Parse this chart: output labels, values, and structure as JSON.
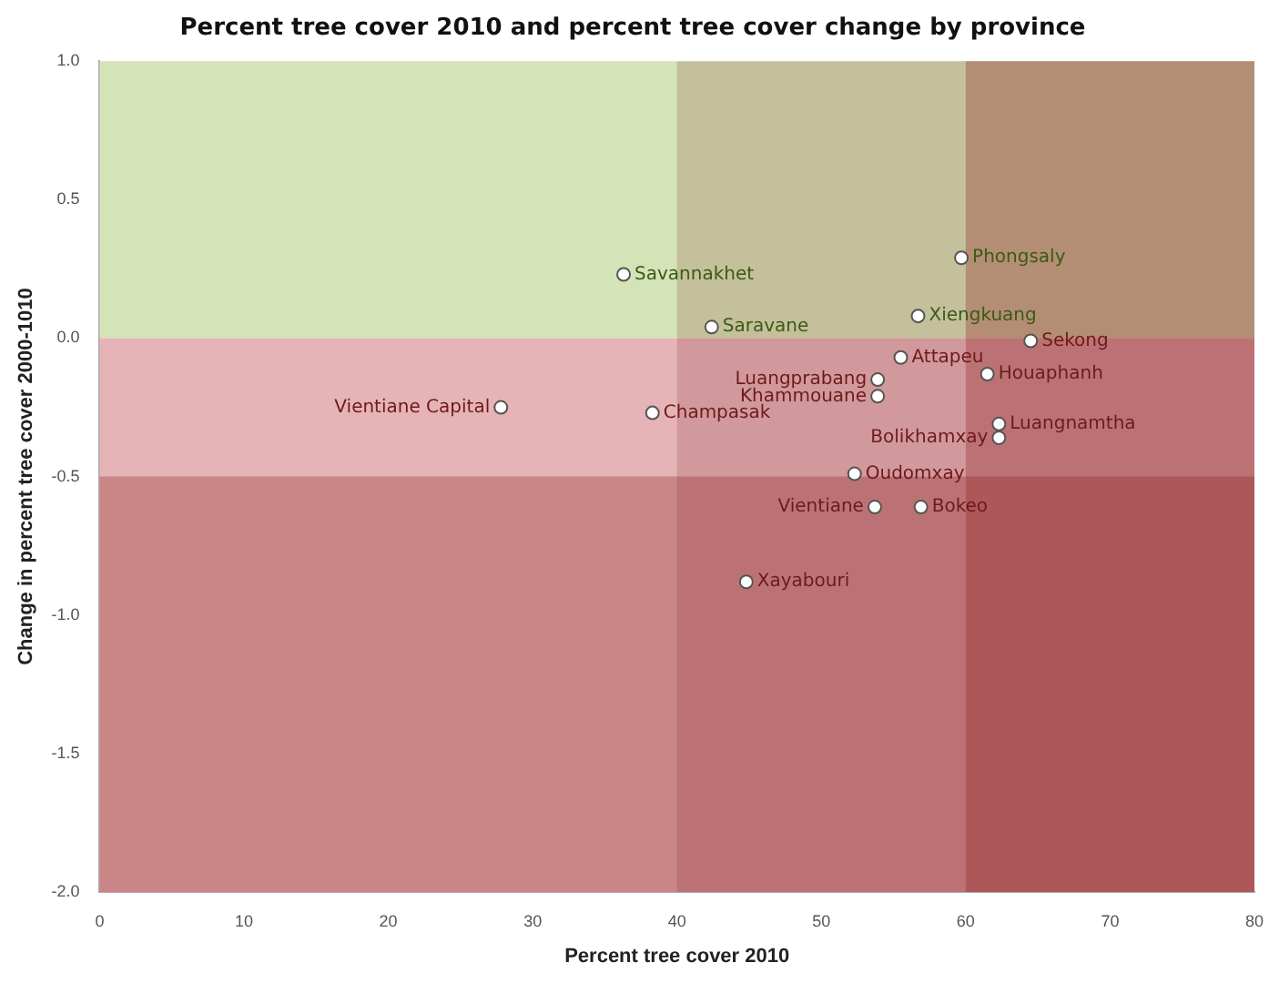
{
  "chart_data": {
    "type": "scatter",
    "title": "Percent tree cover 2010 and percent tree cover change by province",
    "xlabel": "Percent tree cover 2010",
    "ylabel": "Change in percent tree cover 2000-1010",
    "xlim": [
      0,
      80
    ],
    "xticks": [
      0,
      10,
      20,
      30,
      40,
      50,
      60,
      70,
      80
    ],
    "ylim": [
      -2.0,
      1.0
    ],
    "yticks": [
      {
        "value": -2,
        "label": "-2.0"
      },
      {
        "value": -1.5,
        "label": "-1.5"
      },
      {
        "value": -1,
        "label": "-1.0"
      },
      {
        "value": -0.5,
        "label": "-0.5"
      },
      {
        "value": 0,
        "label": "0.0"
      },
      {
        "value": 0.5,
        "label": "0.5"
      },
      {
        "value": 1,
        "label": "1.0"
      }
    ],
    "grid": false,
    "legend": false,
    "marker": "circle",
    "series": [
      {
        "color": "#ffffff",
        "x": [
          36.3,
          27.8,
          38.3,
          42.4,
          59.7,
          56.7,
          64.5,
          55.5,
          53.9,
          53.9,
          61.5,
          62.3,
          62.3,
          52.3,
          53.7,
          56.9,
          44.8
        ],
        "values": [
          0.23,
          -0.25,
          -0.27,
          0.04,
          0.29,
          0.08,
          -0.01,
          -0.07,
          -0.15,
          -0.21,
          -0.13,
          -0.31,
          -0.36,
          -0.49,
          -0.61,
          -0.61,
          -0.88
        ]
      }
    ],
    "bands": [
      {
        "axis": "y",
        "from": 0,
        "to": 1.0,
        "color": "#d5e3b8"
      },
      {
        "axis": "y",
        "from": -2.0,
        "to": 0,
        "color": "#e6b4b7"
      },
      {
        "axis": "x",
        "from": 40,
        "to": 80,
        "color": "#7a2020"
      },
      {
        "axis": "x",
        "from": 60,
        "to": 80,
        "color": "#8b1c1c"
      },
      {
        "axis": "y",
        "from": -2.0,
        "to": -0.5,
        "color": "#8b1c1c"
      }
    ],
    "annotations": [
      {
        "text": "Savannakhet",
        "x": 36.3,
        "y": 0.23
      },
      {
        "text": "Vientiane Capital",
        "x": 27.8,
        "y": -0.25
      },
      {
        "text": "Champasak",
        "x": 38.3,
        "y": -0.27
      },
      {
        "text": "Saravane",
        "x": 42.4,
        "y": 0.04
      },
      {
        "text": "Phongsaly",
        "x": 59.7,
        "y": 0.29
      },
      {
        "text": "Xiengkuang",
        "x": 56.7,
        "y": 0.08
      },
      {
        "text": "Sekong",
        "x": 64.5,
        "y": -0.01
      },
      {
        "text": "Attapeu",
        "x": 55.5,
        "y": -0.07
      },
      {
        "text": "Luangprabang",
        "x": 53.9,
        "y": -0.15
      },
      {
        "text": "Khammouane",
        "x": 53.9,
        "y": -0.21
      },
      {
        "text": "Houaphanh",
        "x": 61.5,
        "y": -0.13
      },
      {
        "text": "Luangnamtha",
        "x": 62.3,
        "y": -0.31
      },
      {
        "text": "Bolikhamxay",
        "x": 62.3,
        "y": -0.36
      },
      {
        "text": "Oudomxay",
        "x": 52.3,
        "y": -0.49
      },
      {
        "text": "Vientiane",
        "x": 53.7,
        "y": -0.61
      },
      {
        "text": "Bokeo",
        "x": 56.9,
        "y": -0.61
      },
      {
        "text": "Xayabouri",
        "x": 44.8,
        "y": -0.88
      }
    ]
  }
}
